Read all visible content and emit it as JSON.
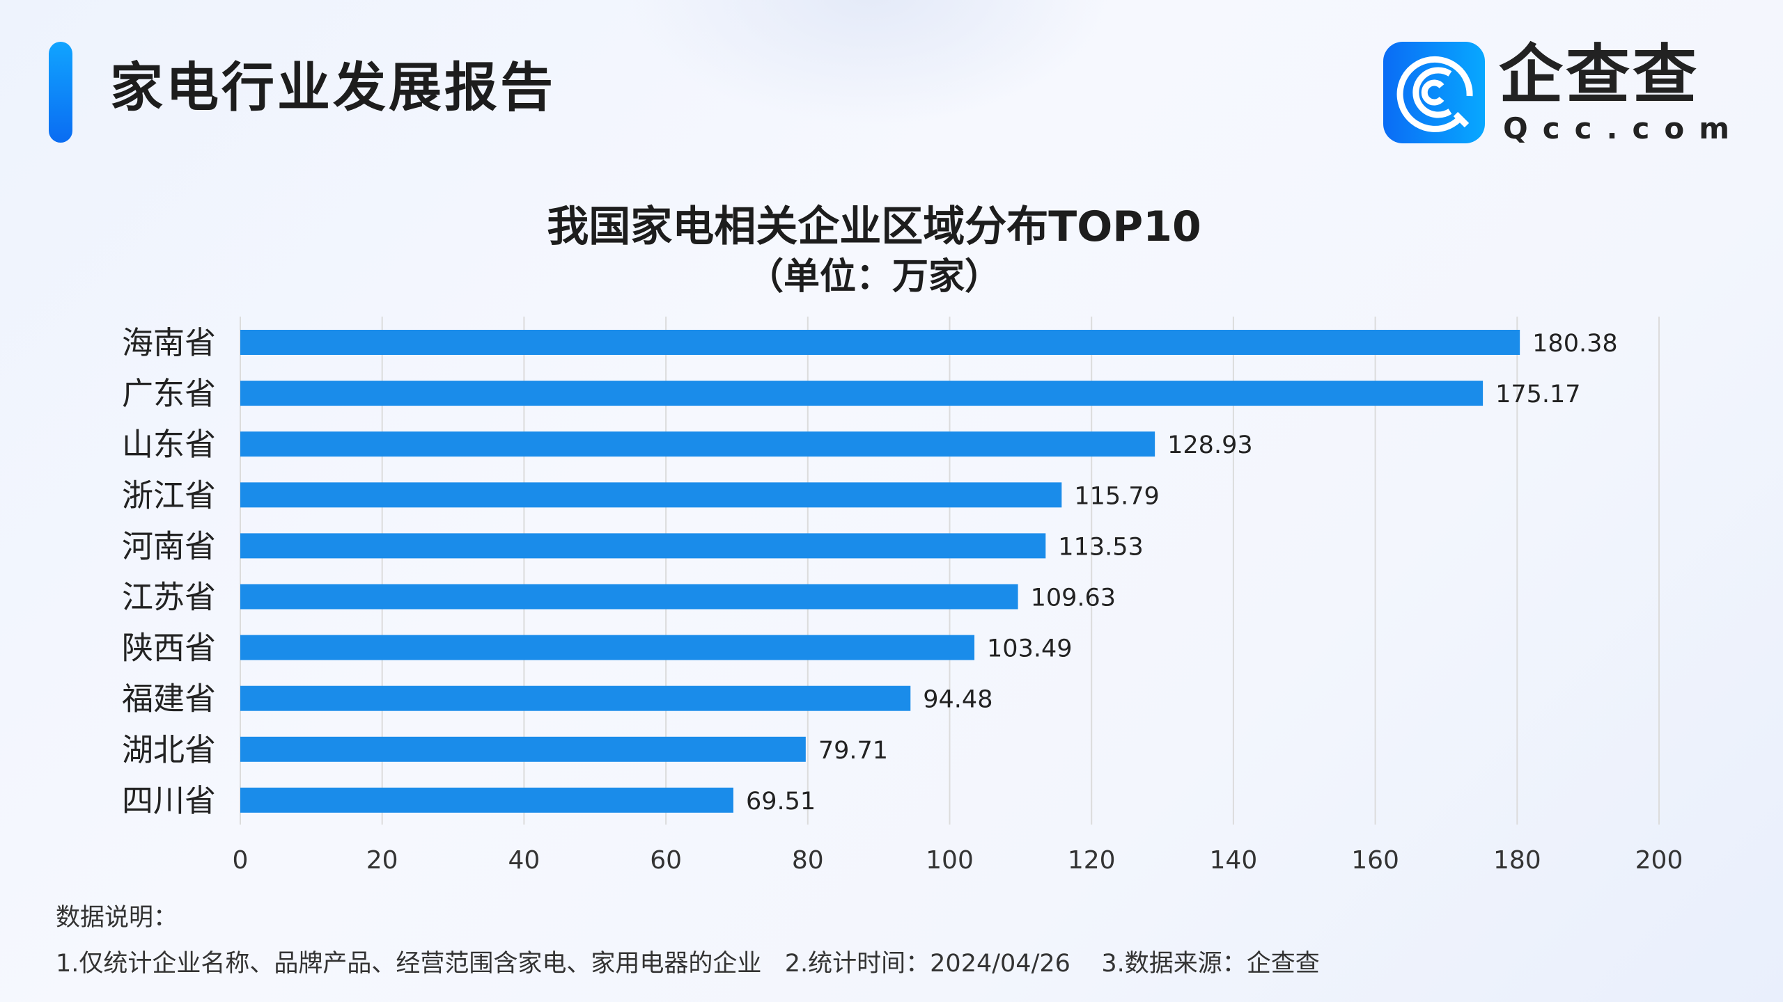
{
  "header": {
    "title": "家电行业发展报告",
    "logo_cn": "企查查",
    "logo_en": "Qcc.com"
  },
  "chart_data": {
    "type": "bar",
    "orientation": "horizontal",
    "title": "我国家电相关企业区域分布TOP10",
    "subtitle": "（单位：万家）",
    "categories": [
      "海南省",
      "广东省",
      "山东省",
      "浙江省",
      "河南省",
      "江苏省",
      "陕西省",
      "福建省",
      "湖北省",
      "四川省"
    ],
    "values": [
      180.38,
      175.17,
      128.93,
      115.79,
      113.53,
      109.63,
      103.49,
      94.48,
      79.71,
      69.51
    ],
    "value_labels": [
      "180.38",
      "175.17",
      "128.93",
      "115.79",
      "113.53",
      "109.63",
      "103.49",
      "94.48",
      "79.71",
      "69.51"
    ],
    "xlim": [
      0,
      200
    ],
    "xticks": [
      "0",
      "20",
      "40",
      "60",
      "80",
      "100",
      "120",
      "140",
      "160",
      "180",
      "200"
    ],
    "grid": true,
    "bar_color": "#1a8cea"
  },
  "footer": {
    "heading": "数据说明：",
    "note": "1.仅统计企业名称、品牌产品、经营范围含家电、家用电器的企业   2.统计时间：2024/04/26    3.数据来源：企查查"
  }
}
